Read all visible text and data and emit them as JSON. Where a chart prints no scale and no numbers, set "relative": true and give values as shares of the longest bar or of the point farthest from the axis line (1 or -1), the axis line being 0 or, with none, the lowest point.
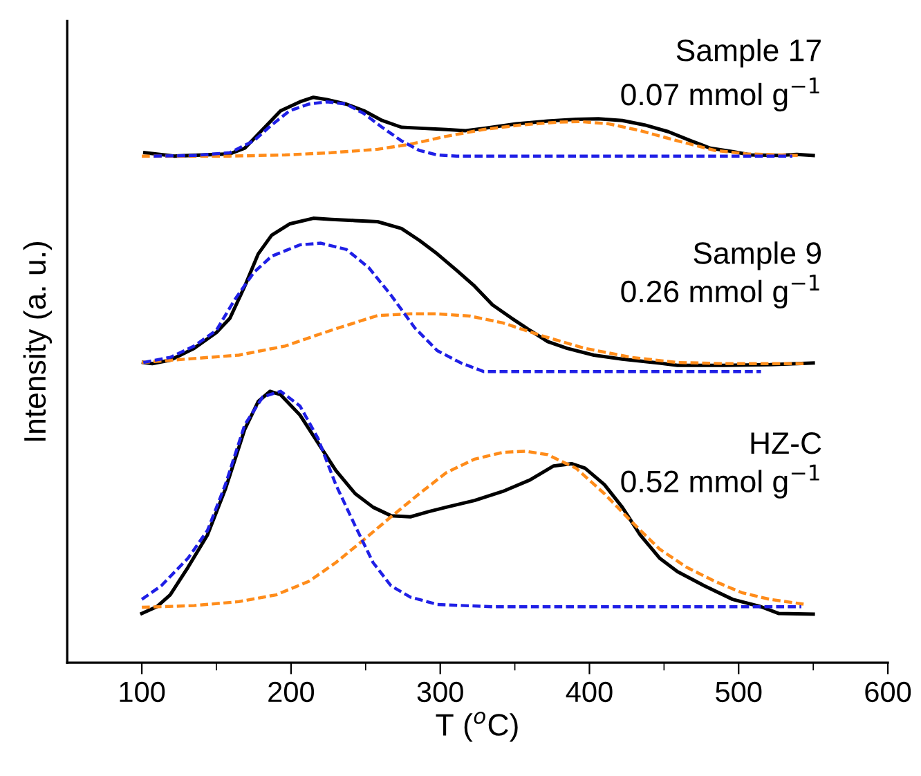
{
  "chart_data": {
    "type": "line",
    "relative": true,
    "xlabel": "T ($^{o}$C)",
    "ylabel": "Intensity (a. u.)",
    "xlim": [
      50,
      600
    ],
    "xticks": [
      100,
      {
        "value": 150,
        "label": null
      },
      200,
      {
        "value": 250,
        "label": null
      },
      300,
      {
        "value": 350,
        "label": null
      },
      400,
      {
        "value": 450,
        "label": null
      },
      500,
      {
        "value": 550,
        "label": null
      },
      600
    ],
    "tick_labels": "x",
    "grid": false,
    "annotations": [
      "Sample 17",
      "0.07 mmol g$^{−1}$",
      "Sample 9",
      "0.26 mmol g$^{−1}$",
      "HZ-C",
      "0.52 mmol g$^{−1}$"
    ],
    "series": [
      {
        "color": "#000000",
        "line_style": "solid",
        "x": [
          102,
          122,
          159,
          169,
          181,
          193,
          206,
          215,
          224,
          237,
          249,
          261,
          274,
          289,
          304,
          317,
          329,
          351,
          372,
          391,
          406,
          422,
          437,
          453,
          468,
          481,
          496,
          508,
          527,
          539,
          550
        ],
        "values": [
          0.902,
          0.896,
          0.9,
          0.91,
          0.943,
          0.976,
          0.992,
          1.0,
          0.996,
          0.988,
          0.976,
          0.959,
          0.947,
          0.945,
          0.943,
          0.941,
          0.945,
          0.953,
          0.958,
          0.961,
          0.962,
          0.959,
          0.951,
          0.939,
          0.923,
          0.91,
          0.904,
          0.898,
          0.897,
          0.899,
          0.897
        ]
      },
      {
        "color": "#1f1fe6",
        "line_style": "dashed",
        "x": [
          108,
          135,
          159,
          175,
          187,
          199,
          212,
          224,
          237,
          249,
          261,
          274,
          286,
          298,
          311,
          536
        ],
        "values": [
          0.896,
          0.897,
          0.902,
          0.923,
          0.951,
          0.976,
          0.988,
          0.992,
          0.988,
          0.971,
          0.947,
          0.923,
          0.906,
          0.898,
          0.896,
          0.896
        ]
      },
      {
        "color": "#ff8c1a",
        "line_style": "dashed",
        "x": [
          100,
          159,
          196,
          227,
          258,
          280,
          304,
          329,
          354,
          379,
          394,
          413,
          434,
          459,
          484,
          505,
          541
        ],
        "values": [
          0.896,
          0.896,
          0.898,
          0.902,
          0.908,
          0.917,
          0.931,
          0.943,
          0.951,
          0.956,
          0.957,
          0.953,
          0.941,
          0.923,
          0.906,
          0.9,
          0.897
        ]
      },
      {
        "color": "#000000",
        "line_style": "solid",
        "x": [
          101,
          107,
          119,
          135,
          150,
          159,
          169,
          178,
          187,
          199,
          215,
          227,
          243,
          258,
          274,
          286,
          298,
          311,
          323,
          335,
          348,
          360,
          372,
          385,
          403,
          422,
          447,
          459,
          490,
          521,
          550
        ],
        "values": [
          0.531,
          0.529,
          0.535,
          0.556,
          0.584,
          0.609,
          0.666,
          0.723,
          0.756,
          0.776,
          0.786,
          0.784,
          0.782,
          0.78,
          0.768,
          0.747,
          0.723,
          0.694,
          0.666,
          0.633,
          0.609,
          0.588,
          0.568,
          0.556,
          0.544,
          0.537,
          0.53,
          0.526,
          0.526,
          0.527,
          0.53
        ]
      },
      {
        "color": "#1f1fe6",
        "line_style": "dashed",
        "x": [
          101,
          119,
          135,
          150,
          162,
          175,
          187,
          206,
          220,
          237,
          252,
          267,
          283,
          298,
          314,
          329,
          351,
          515
        ],
        "values": [
          0.531,
          0.54,
          0.56,
          0.588,
          0.641,
          0.69,
          0.719,
          0.739,
          0.742,
          0.731,
          0.699,
          0.65,
          0.592,
          0.552,
          0.53,
          0.515,
          0.515,
          0.515
        ]
      },
      {
        "color": "#ff8c1a",
        "line_style": "dashed",
        "x": [
          100,
          135,
          165,
          196,
          227,
          258,
          280,
          298,
          320,
          342,
          366,
          397,
          428,
          459,
          490,
          545
        ],
        "values": [
          0.531,
          0.538,
          0.544,
          0.56,
          0.588,
          0.614,
          0.617,
          0.617,
          0.613,
          0.601,
          0.58,
          0.556,
          0.54,
          0.531,
          0.529,
          0.529
        ]
      },
      {
        "color": "#000000",
        "line_style": "solid",
        "x": [
          100,
          110,
          119,
          131,
          144,
          156,
          169,
          178,
          186,
          193,
          206,
          218,
          230,
          243,
          255,
          267,
          280,
          292,
          304,
          323,
          342,
          360,
          376,
          388,
          397,
          410,
          422,
          434,
          447,
          459,
          477,
          496,
          515,
          527,
          550
        ],
        "values": [
          0.087,
          0.099,
          0.12,
          0.169,
          0.226,
          0.307,
          0.413,
          0.462,
          0.48,
          0.474,
          0.438,
          0.389,
          0.34,
          0.299,
          0.275,
          0.26,
          0.258,
          0.267,
          0.275,
          0.287,
          0.303,
          0.323,
          0.348,
          0.352,
          0.344,
          0.315,
          0.275,
          0.226,
          0.185,
          0.161,
          0.136,
          0.112,
          0.099,
          0.087,
          0.086
        ]
      },
      {
        "color": "#1f1fe6",
        "line_style": "dashed",
        "x": [
          100,
          113,
          131,
          144,
          156,
          169,
          181,
          193,
          206,
          218,
          230,
          243,
          255,
          267,
          280,
          298,
          335,
          542
        ],
        "values": [
          0.112,
          0.136,
          0.185,
          0.234,
          0.315,
          0.421,
          0.47,
          0.48,
          0.454,
          0.397,
          0.315,
          0.242,
          0.177,
          0.136,
          0.116,
          0.103,
          0.099,
          0.099
        ]
      },
      {
        "color": "#ff8c1a",
        "line_style": "dashed",
        "x": [
          100,
          135,
          165,
          190,
          212,
          230,
          249,
          267,
          286,
          304,
          323,
          342,
          357,
          372,
          391,
          410,
          428,
          447,
          465,
          484,
          502,
          521,
          545
        ],
        "values": [
          0.098,
          0.101,
          0.108,
          0.12,
          0.144,
          0.177,
          0.218,
          0.258,
          0.299,
          0.336,
          0.36,
          0.372,
          0.374,
          0.368,
          0.344,
          0.299,
          0.25,
          0.201,
          0.169,
          0.144,
          0.124,
          0.112,
          0.103
        ]
      }
    ]
  }
}
